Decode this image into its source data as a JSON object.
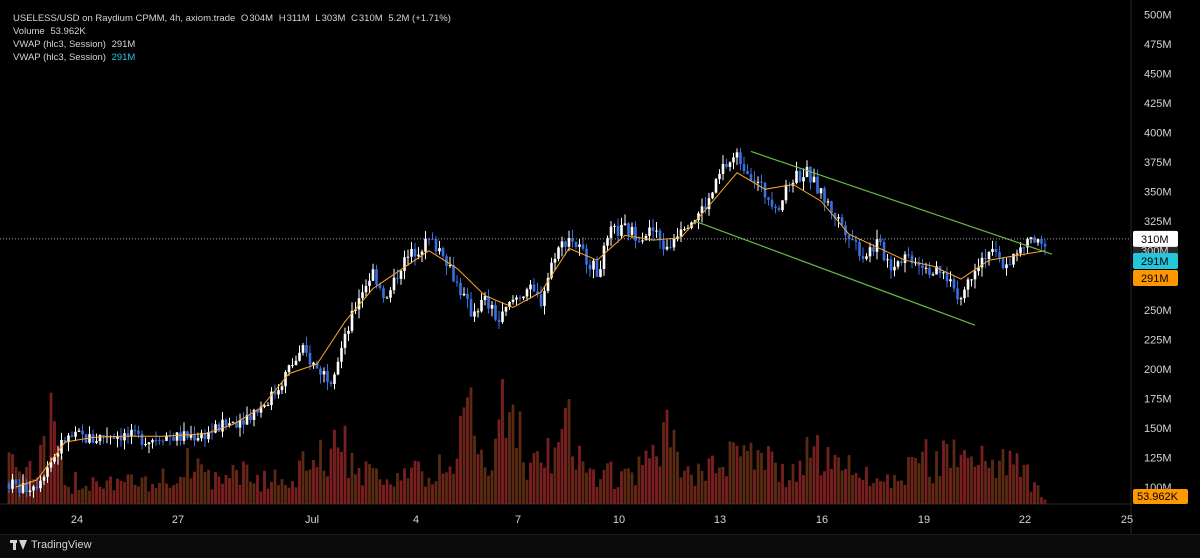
{
  "legend": {
    "symbol": "USELESS/USD on Raydium CPMM, 4h, axiom.trade",
    "o_label": "O",
    "o_value": "304M",
    "h_label": "H",
    "h_value": "311M",
    "l_label": "L",
    "l_value": "303M",
    "c_label": "C",
    "c_value": "310M",
    "change": "5.2M (+1.71%)",
    "volume_label": "Volume",
    "volume_value": "53.962K",
    "vwap1_label": "VWAP (hlc3, Session)",
    "vwap1_value": "291M",
    "vwap2_label": "VWAP (hlc3, Session)",
    "vwap2_value": "291M"
  },
  "footer": {
    "brand": "TradingView"
  },
  "colors": {
    "bg": "#000000",
    "bull": "#ffffff",
    "bear": "#3b6fe0",
    "vwap": "#ffa726",
    "channel": "#66bb4a",
    "vol_a": "#5a2a12",
    "vol_b": "#7a1f1f",
    "badge_last": "#ffffff",
    "badge_vwap1": "#26c6da",
    "badge_vwap2": "#ff9800"
  },
  "chart_data": {
    "type": "candlestick",
    "y_axis": {
      "min": 100,
      "max": 500,
      "unit": "M",
      "ticks": [
        "100M",
        "125M",
        "150M",
        "175M",
        "200M",
        "225M",
        "250M",
        "275M",
        "300M",
        "325M",
        "350M",
        "375M",
        "400M",
        "425M",
        "450M",
        "475M",
        "500M"
      ]
    },
    "x_axis": {
      "ticks": [
        "24",
        "27",
        "Jul",
        "4",
        "7",
        "10",
        "13",
        "16",
        "19",
        "22",
        "25"
      ]
    },
    "badges": {
      "last_price": "310M",
      "hidden": "300M",
      "vwap1": "291M",
      "vwap2": "291M",
      "volume": "53.962K"
    },
    "close_path": [
      [
        0,
        103
      ],
      [
        4,
        98
      ],
      [
        8,
        104
      ],
      [
        12,
        122
      ],
      [
        16,
        140
      ],
      [
        20,
        143
      ],
      [
        24,
        140
      ],
      [
        28,
        145
      ],
      [
        32,
        144
      ],
      [
        36,
        142
      ],
      [
        40,
        140
      ],
      [
        44,
        144
      ],
      [
        48,
        142
      ],
      [
        52,
        143
      ],
      [
        56,
        145
      ],
      [
        60,
        150
      ],
      [
        64,
        155
      ],
      [
        68,
        160
      ],
      [
        72,
        168
      ],
      [
        76,
        180
      ],
      [
        80,
        200
      ],
      [
        84,
        215
      ],
      [
        88,
        200
      ],
      [
        92,
        193
      ],
      [
        96,
        225
      ],
      [
        100,
        262
      ],
      [
        104,
        282
      ],
      [
        108,
        258
      ],
      [
        112,
        288
      ],
      [
        116,
        300
      ],
      [
        120,
        308
      ],
      [
        124,
        300
      ],
      [
        128,
        272
      ],
      [
        132,
        248
      ],
      [
        136,
        258
      ],
      [
        140,
        240
      ],
      [
        144,
        258
      ],
      [
        148,
        268
      ],
      [
        152,
        258
      ],
      [
        156,
        298
      ],
      [
        160,
        312
      ],
      [
        164,
        298
      ],
      [
        168,
        282
      ],
      [
        172,
        315
      ],
      [
        176,
        318
      ],
      [
        180,
        313
      ],
      [
        184,
        317
      ],
      [
        188,
        300
      ],
      [
        192,
        322
      ],
      [
        196,
        328
      ],
      [
        200,
        342
      ],
      [
        204,
        370
      ],
      [
        208,
        380
      ],
      [
        212,
        365
      ],
      [
        216,
        348
      ],
      [
        220,
        338
      ],
      [
        224,
        362
      ],
      [
        228,
        366
      ],
      [
        232,
        348
      ],
      [
        236,
        330
      ],
      [
        240,
        315
      ],
      [
        244,
        296
      ],
      [
        248,
        306
      ],
      [
        252,
        288
      ],
      [
        256,
        296
      ],
      [
        260,
        292
      ],
      [
        264,
        282
      ],
      [
        268,
        278
      ],
      [
        272,
        260
      ],
      [
        276,
        288
      ],
      [
        280,
        300
      ],
      [
        284,
        288
      ],
      [
        288,
        296
      ],
      [
        292,
        310
      ],
      [
        296,
        300
      ]
    ],
    "volume_path": [
      [
        0,
        58
      ],
      [
        8,
        35
      ],
      [
        12,
        85
      ],
      [
        16,
        20
      ],
      [
        24,
        30
      ],
      [
        40,
        20
      ],
      [
        52,
        45
      ],
      [
        60,
        22
      ],
      [
        64,
        40
      ],
      [
        72,
        25
      ],
      [
        80,
        30
      ],
      [
        84,
        40
      ],
      [
        96,
        60
      ],
      [
        100,
        45
      ],
      [
        104,
        30
      ],
      [
        112,
        35
      ],
      [
        120,
        30
      ],
      [
        128,
        55
      ],
      [
        132,
        110
      ],
      [
        136,
        30
      ],
      [
        140,
        95
      ],
      [
        144,
        140
      ],
      [
        148,
        35
      ],
      [
        156,
        55
      ],
      [
        160,
        85
      ],
      [
        164,
        35
      ],
      [
        176,
        30
      ],
      [
        184,
        45
      ],
      [
        188,
        85
      ],
      [
        192,
        30
      ],
      [
        200,
        35
      ],
      [
        204,
        65
      ],
      [
        208,
        50
      ],
      [
        216,
        55
      ],
      [
        220,
        30
      ],
      [
        224,
        40
      ],
      [
        232,
        60
      ],
      [
        236,
        45
      ],
      [
        248,
        30
      ],
      [
        256,
        25
      ],
      [
        260,
        70
      ],
      [
        264,
        35
      ],
      [
        272,
        85
      ],
      [
        276,
        55
      ],
      [
        280,
        45
      ],
      [
        284,
        48
      ],
      [
        288,
        45
      ],
      [
        296,
        6
      ]
    ],
    "vwap_series": [
      [
        2,
        100
      ],
      [
        8,
        106
      ],
      [
        16,
        138
      ],
      [
        24,
        142
      ],
      [
        32,
        143
      ],
      [
        44,
        143
      ],
      [
        56,
        145
      ],
      [
        64,
        153
      ],
      [
        72,
        167
      ],
      [
        80,
        196
      ],
      [
        88,
        204
      ],
      [
        96,
        240
      ],
      [
        104,
        268
      ],
      [
        112,
        284
      ],
      [
        120,
        300
      ],
      [
        128,
        285
      ],
      [
        136,
        262
      ],
      [
        144,
        252
      ],
      [
        152,
        265
      ],
      [
        160,
        302
      ],
      [
        168,
        292
      ],
      [
        176,
        313
      ],
      [
        184,
        309
      ],
      [
        192,
        311
      ],
      [
        200,
        338
      ],
      [
        208,
        366
      ],
      [
        216,
        352
      ],
      [
        224,
        356
      ],
      [
        232,
        342
      ],
      [
        240,
        314
      ],
      [
        248,
        303
      ],
      [
        256,
        292
      ],
      [
        264,
        287
      ],
      [
        272,
        276
      ],
      [
        280,
        292
      ],
      [
        288,
        296
      ],
      [
        296,
        300
      ]
    ],
    "channel": {
      "upper": [
        [
          212,
          384
        ],
        [
          298,
          297
        ]
      ],
      "lower": [
        [
          196,
          325
        ],
        [
          276,
          237
        ]
      ]
    }
  }
}
